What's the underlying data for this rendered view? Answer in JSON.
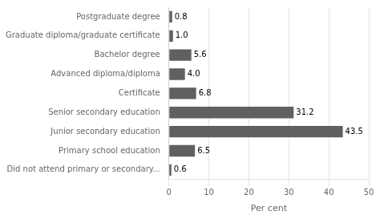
{
  "chart_data": {
    "type": "bar",
    "orientation": "horizontal",
    "categories": [
      "Did not attend primary or secondary...",
      "Primary school education",
      "Junior secondary education",
      "Senior secondary education",
      "Certificate",
      "Advanced diploma/diploma",
      "Bachelor degree",
      "Graduate diploma/graduate certificate",
      "Postgraduate degree"
    ],
    "values": [
      0.6,
      6.5,
      43.5,
      31.2,
      6.8,
      4.0,
      5.6,
      1.0,
      0.8
    ],
    "value_labels": [
      "0.6",
      "6.5",
      "43.5",
      "31.2",
      "6.8",
      "4.0",
      "5.6",
      "1.0",
      "0.8"
    ],
    "data_labels": true,
    "color": "#606060",
    "xlabel": "Per cent",
    "xlim": [
      0,
      50
    ],
    "xticks": [
      0,
      10,
      20,
      30,
      40,
      50
    ],
    "grid": true
  }
}
